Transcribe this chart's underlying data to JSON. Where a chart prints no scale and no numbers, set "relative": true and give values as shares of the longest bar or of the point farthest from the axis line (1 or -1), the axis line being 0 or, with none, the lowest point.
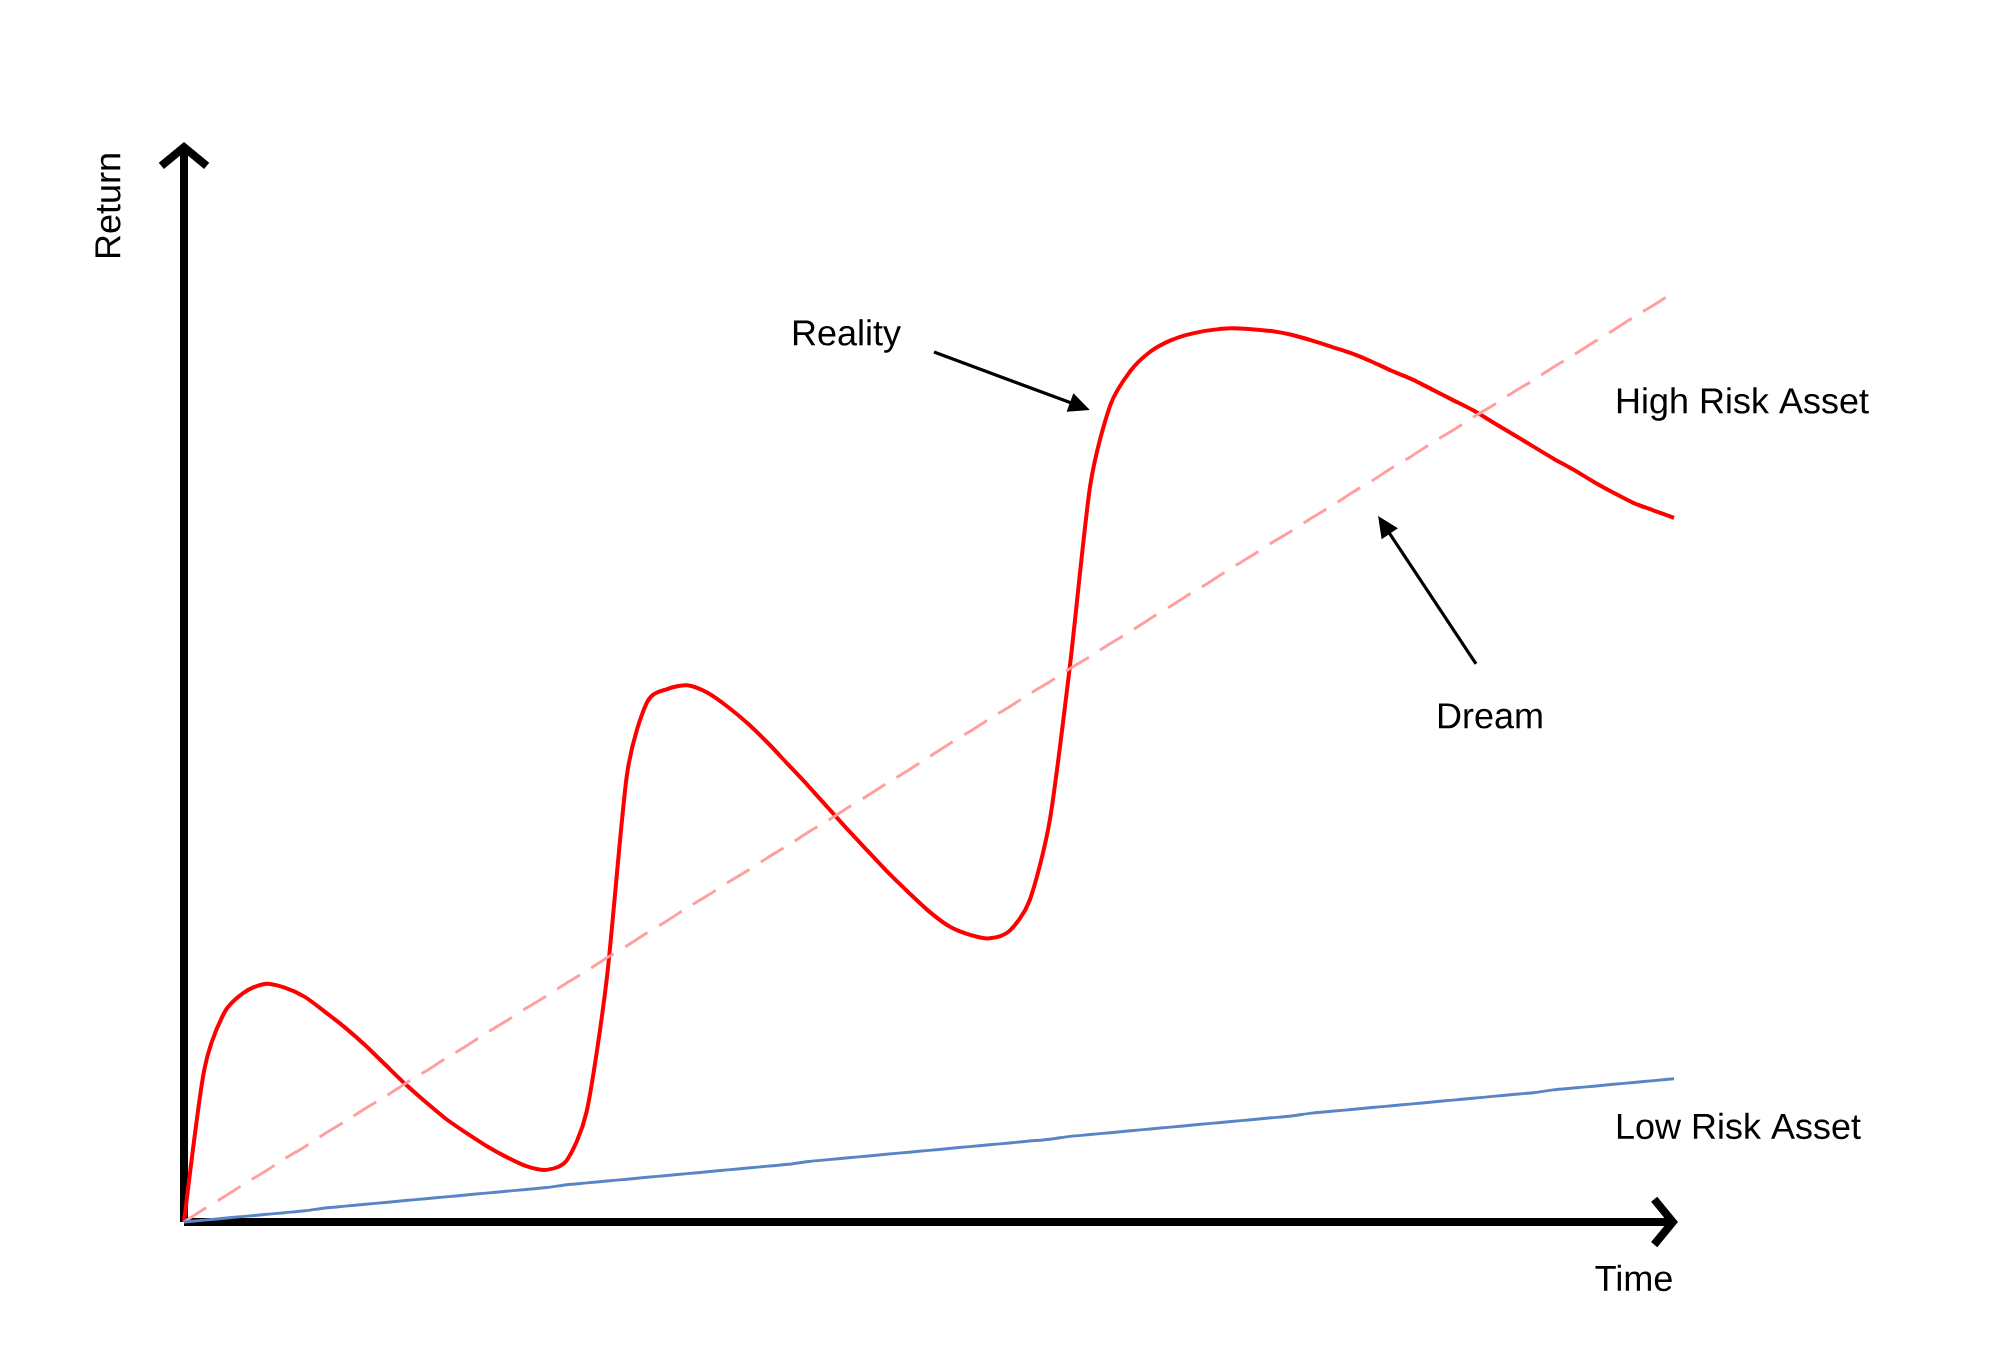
{
  "chart_data": {
    "type": "line",
    "relative": true,
    "legend": false,
    "xlabel": "Time",
    "ylabel": "Return",
    "annotations": [
      "Reality",
      "High Risk Asset",
      "Dream"
    ],
    "categories": [
      null,
      null,
      null,
      null,
      null,
      null,
      null,
      null,
      null,
      null,
      null,
      null,
      null,
      null,
      null,
      null,
      null,
      null,
      null,
      null,
      null,
      null,
      null,
      null,
      null,
      null,
      null,
      null,
      null,
      null,
      null,
      null,
      null,
      null,
      null,
      null,
      null,
      null,
      null,
      null,
      null,
      null,
      null,
      null,
      null,
      null,
      null,
      null,
      null,
      null,
      null,
      null,
      null,
      null,
      null,
      null,
      null,
      null,
      null,
      null,
      null,
      null,
      null,
      null,
      null,
      null,
      null,
      null,
      null,
      null,
      null,
      null,
      null,
      null,
      null
    ],
    "series": [
      {
        "color": "#ff0000",
        "values": [
          0,
          0.163,
          0.225,
          0.247,
          0.256,
          0.252,
          0.242,
          0.226,
          0.209,
          0.19,
          0.169,
          0.148,
          0.129,
          0.111,
          0.096,
          0.082,
          0.07,
          0.06,
          0.056,
          0.066,
          0.119,
          0.262,
          0.481,
          0.559,
          0.573,
          0.577,
          0.569,
          0.554,
          0.536,
          0.515,
          0.492,
          0.469,
          0.445,
          0.421,
          0.398,
          0.375,
          0.354,
          0.334,
          0.318,
          0.309,
          0.305,
          0.313,
          0.346,
          0.432,
          0.598,
          0.791,
          0.878,
          0.915,
          0.936,
          0.948,
          0.955,
          0.959,
          0.961,
          0.96,
          0.958,
          0.954,
          0.948,
          0.941,
          0.934,
          0.925,
          0.915,
          0.906,
          0.895,
          0.884,
          0.873,
          0.86,
          0.847,
          0.834,
          0.821,
          0.809,
          0.796,
          0.784,
          0.773,
          0.765,
          0.757
        ]
      },
      {
        "color": "#ff9f9f",
        "line_style": "dashed",
        "values": [
          0,
          0.014,
          0.027,
          0.041,
          0.054,
          0.068,
          0.081,
          0.095,
          0.108,
          0.122,
          0.135,
          0.149,
          0.162,
          0.176,
          0.189,
          0.203,
          0.216,
          0.23,
          0.243,
          0.257,
          0.27,
          0.284,
          0.297,
          0.311,
          0.324,
          0.338,
          0.351,
          0.365,
          0.378,
          0.392,
          0.405,
          0.419,
          0.432,
          0.446,
          0.459,
          0.473,
          0.486,
          0.5,
          0.514,
          0.527,
          0.541,
          0.554,
          0.568,
          0.581,
          0.595,
          0.608,
          0.622,
          0.635,
          0.649,
          0.662,
          0.676,
          0.689,
          0.703,
          0.716,
          0.73,
          0.743,
          0.757,
          0.77,
          0.784,
          0.797,
          0.811,
          0.824,
          0.838,
          0.851,
          0.865,
          0.878,
          0.892,
          0.905,
          0.919,
          0.932,
          0.946,
          0.959,
          0.973,
          0.986,
          1
        ]
      },
      {
        "name": "Low Risk Asset",
        "color": "#5a85c5",
        "values": [
          0,
          0.002,
          0.004,
          0.006,
          0.008,
          0.01,
          0.012,
          0.015,
          0.017,
          0.019,
          0.021,
          0.023,
          0.025,
          0.027,
          0.029,
          0.031,
          0.033,
          0.035,
          0.037,
          0.04,
          0.042,
          0.044,
          0.046,
          0.048,
          0.05,
          0.052,
          0.054,
          0.056,
          0.058,
          0.06,
          0.062,
          0.065,
          0.067,
          0.069,
          0.071,
          0.073,
          0.075,
          0.077,
          0.079,
          0.081,
          0.083,
          0.085,
          0.087,
          0.089,
          0.092,
          0.094,
          0.096,
          0.098,
          0.1,
          0.102,
          0.104,
          0.106,
          0.108,
          0.11,
          0.112,
          0.114,
          0.117,
          0.119,
          0.121,
          0.123,
          0.125,
          0.127,
          0.129,
          0.131,
          0.133,
          0.135,
          0.137,
          0.139,
          0.142,
          0.144,
          0.146,
          0.148,
          0.15,
          0.152,
          0.154
        ]
      }
    ]
  }
}
